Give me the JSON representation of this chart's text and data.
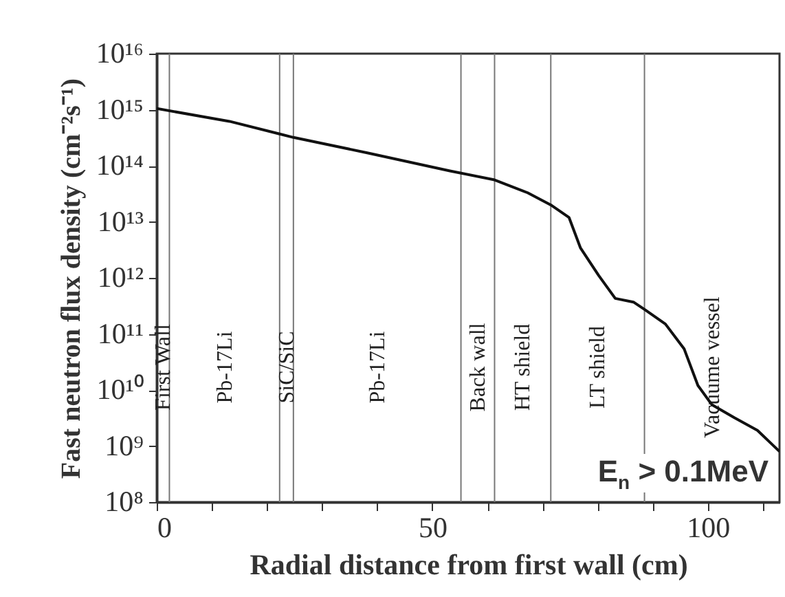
{
  "chart_data": {
    "type": "line",
    "xlabel": "Radial distance from first wall (cm)",
    "ylabel": "Fast neutron flux density (cm⁻²s⁻¹)",
    "x": [
      0,
      13.2,
      22.3,
      24.8,
      38.2,
      53.2,
      61.3,
      67.3,
      71.5,
      74.8,
      76.9,
      80.2,
      83.2,
      86.5,
      88.6,
      92.3,
      95.7,
      98.2,
      100.7,
      104.8,
      109,
      113
    ],
    "series": [
      {
        "color": "#111111",
        "values": [
          1050000000000000.0,
          620000000000000.0,
          370000000000000.0,
          320000000000000.0,
          170000000000000.0,
          81000000000000.0,
          56000000000000.0,
          33000000000000.0,
          20000000000000.0,
          12000000000000.0,
          3400000000000.0,
          1100000000000.0,
          430000000000.0,
          370000000000.0,
          270000000000.0,
          150000000000.0,
          54000000000.0,
          12000000000.0,
          5500000000.0,
          3200000000.0,
          1900000000.0,
          800000000.0
        ]
      }
    ],
    "log": "y",
    "xlim": [
      0,
      113
    ],
    "xticks": [
      0,
      {
        "value": 10,
        "label": null
      },
      {
        "value": 20,
        "label": null
      },
      {
        "value": 30,
        "label": null
      },
      {
        "value": 40,
        "label": null
      },
      50,
      {
        "value": 60,
        "label": null
      },
      {
        "value": 70,
        "label": null
      },
      {
        "value": 80,
        "label": null
      },
      {
        "value": 90,
        "label": null
      },
      100,
      {
        "value": 110,
        "label": null
      }
    ],
    "ylim": [
      100000000.0,
      1e+16
    ],
    "yticks": [
      {
        "value": 100000000.0,
        "label": "10⁸"
      },
      {
        "value": 1000000000.0,
        "label": "10⁹"
      },
      {
        "value": 10000000000.0,
        "label": "10¹⁰"
      },
      {
        "value": 100000000000.0,
        "label": "10¹¹"
      },
      {
        "value": 1000000000000.0,
        "label": "10¹²"
      },
      {
        "value": 10000000000000.0,
        "label": "10¹³"
      },
      {
        "value": 100000000000000.0,
        "label": "10¹⁴"
      },
      {
        "value": 1000000000000000.0,
        "label": "10¹⁵"
      },
      {
        "value": 1e+16,
        "label": "10¹⁶"
      }
    ],
    "ref_lines": [
      {
        "axis": "x",
        "value": 2.3
      },
      {
        "axis": "x",
        "value": 22.3
      },
      {
        "axis": "x",
        "value": 24.8
      },
      {
        "axis": "x",
        "value": 55.2
      },
      {
        "axis": "x",
        "value": 61.3
      },
      {
        "axis": "x",
        "value": 71.5
      },
      {
        "axis": "x",
        "value": 88.5
      }
    ],
    "annotations": [
      "E$_{n}$ > 0.1MeV",
      "First Wall",
      "Pb-17Li",
      "SiC/SiC",
      "Pb-17Li",
      "Back wall",
      "HT shield",
      "LT shield",
      "Vacuume vessel"
    ],
    "grid": false
  }
}
